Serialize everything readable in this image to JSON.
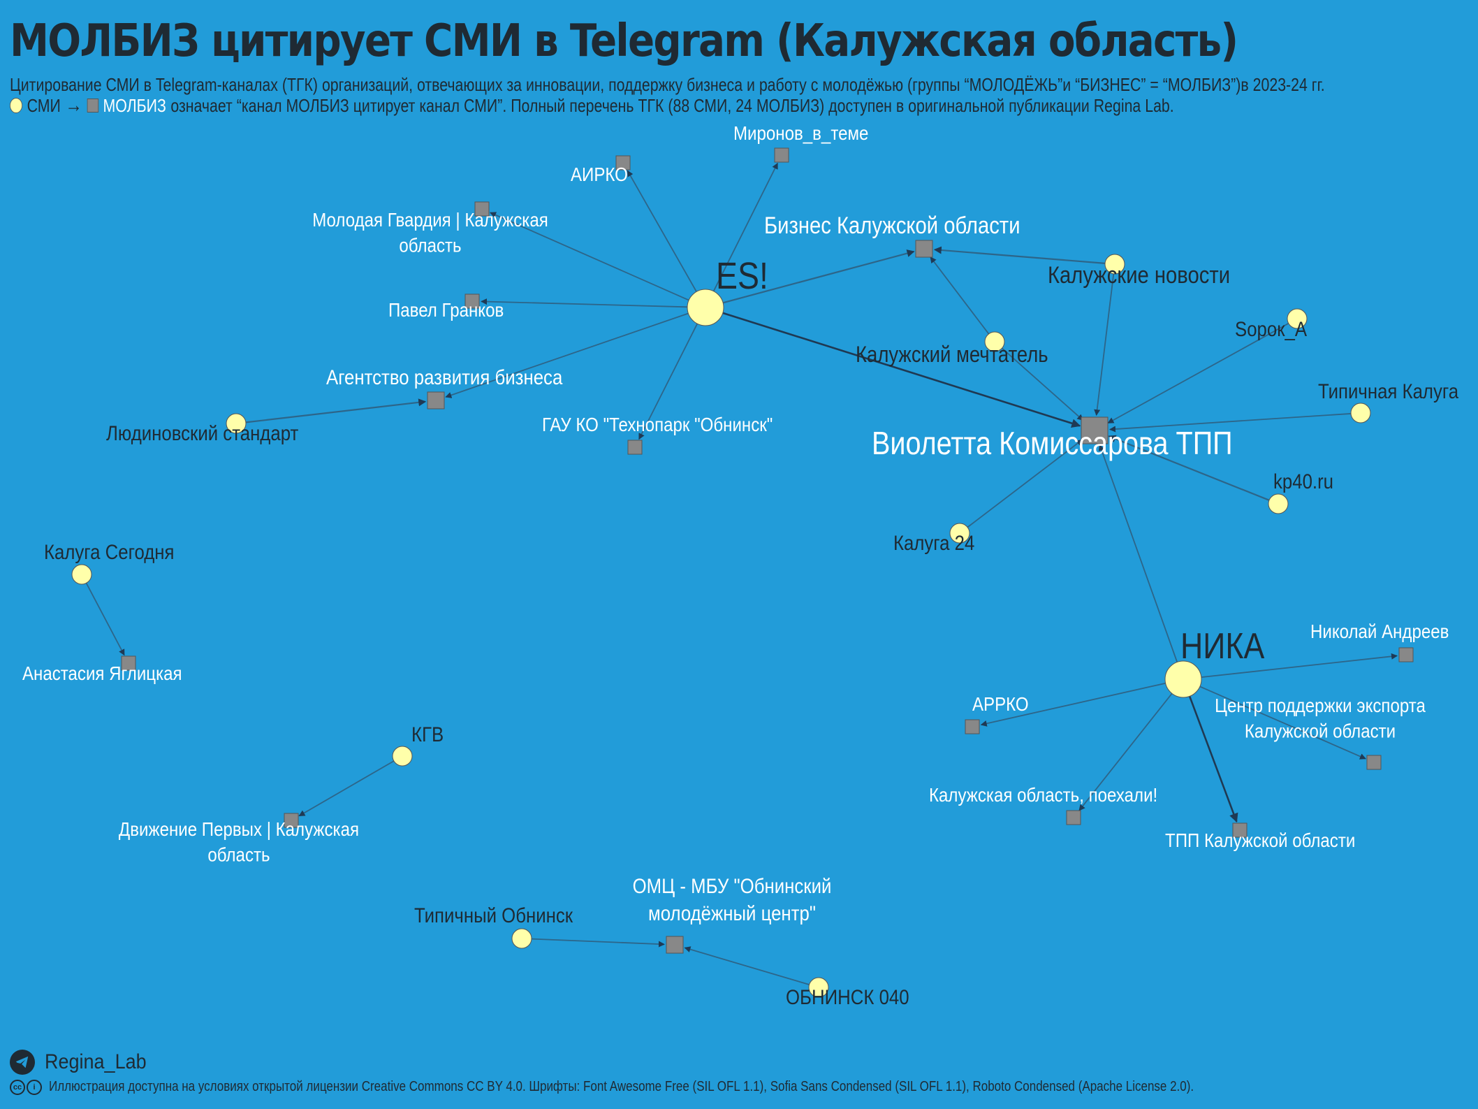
{
  "title": "МОЛБИЗ цитирует СМИ в Telegram (Калужская область)",
  "subtitle": "Цитирование СМИ в Telegram-каналах (ТГК) организаций, отвечающих за инновации, поддержку бизнеса и работу с молодёжью (группы “МОЛОДЁЖЬ”и “БИЗНЕС” = “МОЛБИЗ”)в 2023-24 гг.",
  "legend": {
    "smi": "СМИ",
    "molbiz": "МОЛБИЗ",
    "text": "означает “канал МОЛБИЗ цитирует канал СМИ”. Полный перечень ТГК (88 СМИ, 24 МОЛБИЗ) доступен в оригинальной публикации Regina Lab."
  },
  "colors": {
    "background": "#229cd9",
    "smi": "#ffffaa",
    "molbiz": "#888888",
    "edge": "#2f5f80",
    "label_dark": "#1f2a33",
    "label_light": "#ffffff"
  },
  "nodes": [
    {
      "id": "es",
      "label": "ES!",
      "type": "smi",
      "size": "xl",
      "labelColor": "dark"
    },
    {
      "id": "kn",
      "label": "Калужские новости",
      "type": "smi",
      "size": "m",
      "labelColor": "dark"
    },
    {
      "id": "km",
      "label": "Калужский мечтатель",
      "type": "smi",
      "size": "m",
      "labelColor": "dark"
    },
    {
      "id": "sorok",
      "label": "Sорок_А",
      "type": "smi",
      "size": "m",
      "labelColor": "dark"
    },
    {
      "id": "tipk",
      "label": "Типичная Калуга",
      "type": "smi",
      "size": "m",
      "labelColor": "dark"
    },
    {
      "id": "kp40",
      "label": "kp40.ru",
      "type": "smi",
      "size": "m",
      "labelColor": "dark"
    },
    {
      "id": "k24",
      "label": "Калуга 24",
      "type": "smi",
      "size": "m",
      "labelColor": "dark"
    },
    {
      "id": "lyud",
      "label": "Людиновский стандарт",
      "type": "smi",
      "size": "m",
      "labelColor": "dark"
    },
    {
      "id": "kseg",
      "label": "Калуга Сегодня",
      "type": "smi",
      "size": "m",
      "labelColor": "dark"
    },
    {
      "id": "kgv",
      "label": "КГВ",
      "type": "smi",
      "size": "m",
      "labelColor": "dark"
    },
    {
      "id": "tipo",
      "label": "Типичный Обнинск",
      "type": "smi",
      "size": "m",
      "labelColor": "dark"
    },
    {
      "id": "obn040",
      "label": "ОБНИНСК 040",
      "type": "smi",
      "size": "m",
      "labelColor": "dark"
    },
    {
      "id": "nika",
      "label": "НИКА",
      "type": "smi",
      "size": "xl",
      "labelColor": "dark"
    },
    {
      "id": "airko",
      "label": "АИРКО",
      "type": "molbiz",
      "size": "s",
      "labelColor": "light"
    },
    {
      "id": "mir",
      "label": "Миронов_в_теме",
      "type": "molbiz",
      "size": "s",
      "labelColor": "light"
    },
    {
      "id": "mg",
      "label": "Молодая Гвардия | Калужская область",
      "type": "molbiz",
      "size": "s",
      "labelColor": "light"
    },
    {
      "id": "pg",
      "label": "Павел Гранков",
      "type": "molbiz",
      "size": "s",
      "labelColor": "light"
    },
    {
      "id": "arb",
      "label": "Агентство развития бизнеса",
      "type": "molbiz",
      "size": "m",
      "labelColor": "light"
    },
    {
      "id": "gau",
      "label": "ГАУ КО \"Технопарк \"Обнинск\"",
      "type": "molbiz",
      "size": "s",
      "labelColor": "light"
    },
    {
      "id": "bko",
      "label": "Бизнес Калужской области",
      "type": "molbiz",
      "size": "m",
      "labelColor": "light"
    },
    {
      "id": "vk",
      "label": "Виолетта Комиссарова ТПП",
      "type": "molbiz",
      "size": "l",
      "labelColor": "light"
    },
    {
      "id": "ay",
      "label": "Анастасия Яглицкая",
      "type": "molbiz",
      "size": "s",
      "labelColor": "light"
    },
    {
      "id": "dp",
      "label": "Движение Первых | Калужская область",
      "type": "molbiz",
      "size": "s",
      "labelColor": "light"
    },
    {
      "id": "omc",
      "label": "ОМЦ - МБУ \"Обнинский молодёжный центр\"",
      "type": "molbiz",
      "size": "m",
      "labelColor": "light"
    },
    {
      "id": "na",
      "label": "Николай Андреев",
      "type": "molbiz",
      "size": "s",
      "labelColor": "light"
    },
    {
      "id": "arrko",
      "label": "АРРКО",
      "type": "molbiz",
      "size": "s",
      "labelColor": "light"
    },
    {
      "id": "cpe",
      "label": "Центр поддержки экспорта Калужской области",
      "type": "molbiz",
      "size": "s",
      "labelColor": "light"
    },
    {
      "id": "kop",
      "label": "Калужская область, поехали!",
      "type": "molbiz",
      "size": "s",
      "labelColor": "light"
    },
    {
      "id": "tppko",
      "label": "ТПП Калужской области",
      "type": "molbiz",
      "size": "s",
      "labelColor": "light"
    }
  ],
  "edges": [
    {
      "from": "es",
      "to": "airko",
      "weight": 1
    },
    {
      "from": "es",
      "to": "mir",
      "weight": 1
    },
    {
      "from": "es",
      "to": "mg",
      "weight": 1
    },
    {
      "from": "es",
      "to": "pg",
      "weight": 1
    },
    {
      "from": "es",
      "to": "arb",
      "weight": 1
    },
    {
      "from": "es",
      "to": "gau",
      "weight": 1
    },
    {
      "from": "es",
      "to": "bko",
      "weight": 2
    },
    {
      "from": "es",
      "to": "vk",
      "weight": 3
    },
    {
      "from": "lyud",
      "to": "arb",
      "weight": 2
    },
    {
      "from": "kn",
      "to": "bko",
      "weight": 2
    },
    {
      "from": "kn",
      "to": "vk",
      "weight": 1
    },
    {
      "from": "km",
      "to": "bko",
      "weight": 1
    },
    {
      "from": "km",
      "to": "vk",
      "weight": 1
    },
    {
      "from": "sorok",
      "to": "vk",
      "weight": 1
    },
    {
      "from": "tipk",
      "to": "vk",
      "weight": 1
    },
    {
      "from": "kp40",
      "to": "vk",
      "weight": 2
    },
    {
      "from": "k24",
      "to": "vk",
      "weight": 1
    },
    {
      "from": "nika",
      "to": "vk",
      "weight": 1
    },
    {
      "from": "kseg",
      "to": "ay",
      "weight": 1
    },
    {
      "from": "kgv",
      "to": "dp",
      "weight": 1
    },
    {
      "from": "tipo",
      "to": "omc",
      "weight": 1
    },
    {
      "from": "obn040",
      "to": "omc",
      "weight": 1
    },
    {
      "from": "nika",
      "to": "na",
      "weight": 1
    },
    {
      "from": "nika",
      "to": "arrko",
      "weight": 1
    },
    {
      "from": "nika",
      "to": "cpe",
      "weight": 1
    },
    {
      "from": "nika",
      "to": "kop",
      "weight": 1
    },
    {
      "from": "nika",
      "to": "tppko",
      "weight": 3
    }
  ],
  "footer": {
    "telegram": "Regina_Lab",
    "license": "Иллюстрация доступна на условиях открытой лицензии Creative Commons CC BY 4.0. Шрифты: Font Awesome Free (SIL OFL 1.1), Sofia Sans Condensed (SIL OFL 1.1), Roboto Condensed (Apache License 2.0)."
  }
}
